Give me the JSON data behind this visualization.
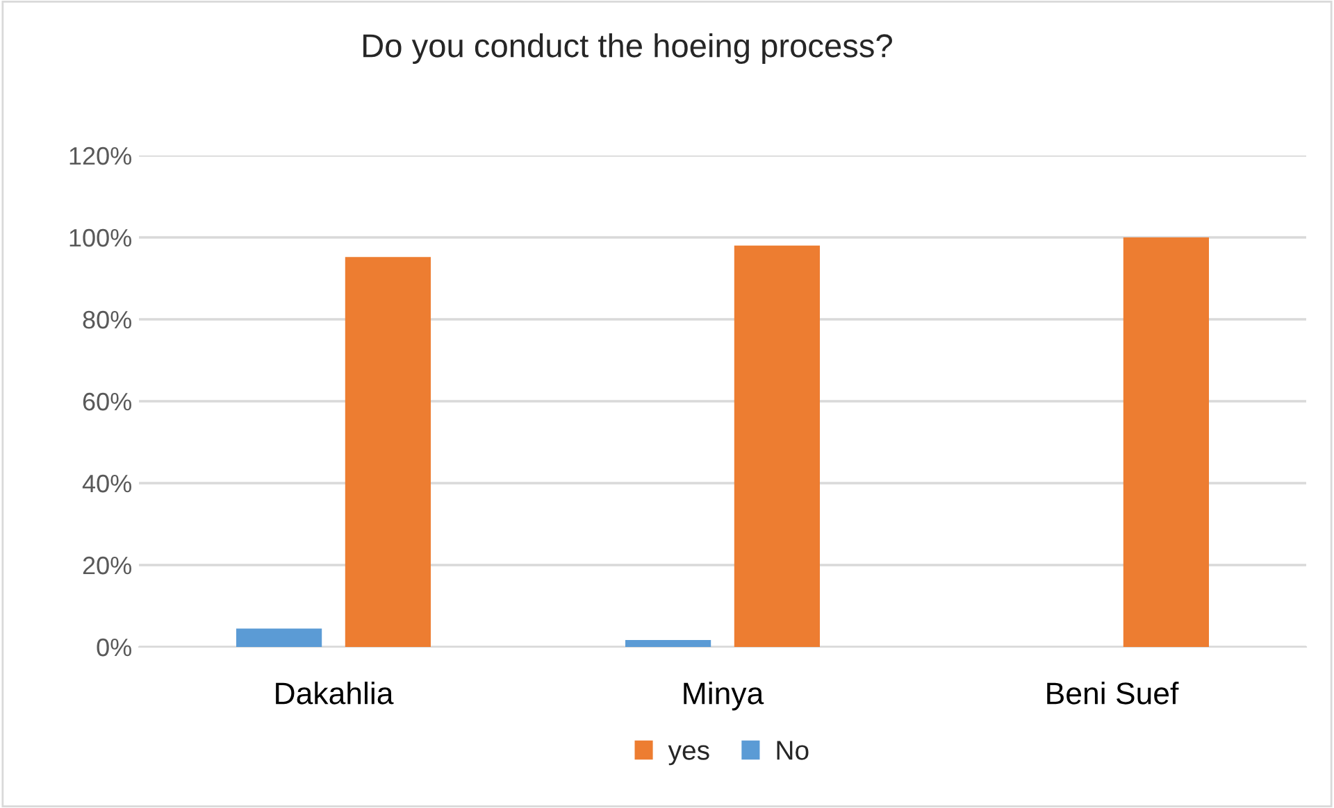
{
  "chart_data": {
    "type": "bar",
    "title": "Do you conduct the hoeing process?",
    "categories": [
      "Dakahlia",
      "Minya",
      "Beni Suef"
    ],
    "series": [
      {
        "name": "No",
        "color": "#5b9bd5",
        "values": [
          4.5,
          1.7,
          null
        ]
      },
      {
        "name": "yes",
        "color": "#ed7d31",
        "values": [
          95.2,
          98,
          100
        ]
      }
    ],
    "ylim": [
      0,
      120
    ],
    "yticks": [
      {
        "value": 0,
        "label": "0%"
      },
      {
        "value": 20,
        "label": "20%"
      },
      {
        "value": 40,
        "label": "40%"
      },
      {
        "value": 60,
        "label": "60%"
      },
      {
        "value": 80,
        "label": "80%"
      },
      {
        "value": 100,
        "label": "100%"
      },
      {
        "value": 120,
        "label": "120%"
      }
    ],
    "grid": "y",
    "legend": "bottom"
  }
}
